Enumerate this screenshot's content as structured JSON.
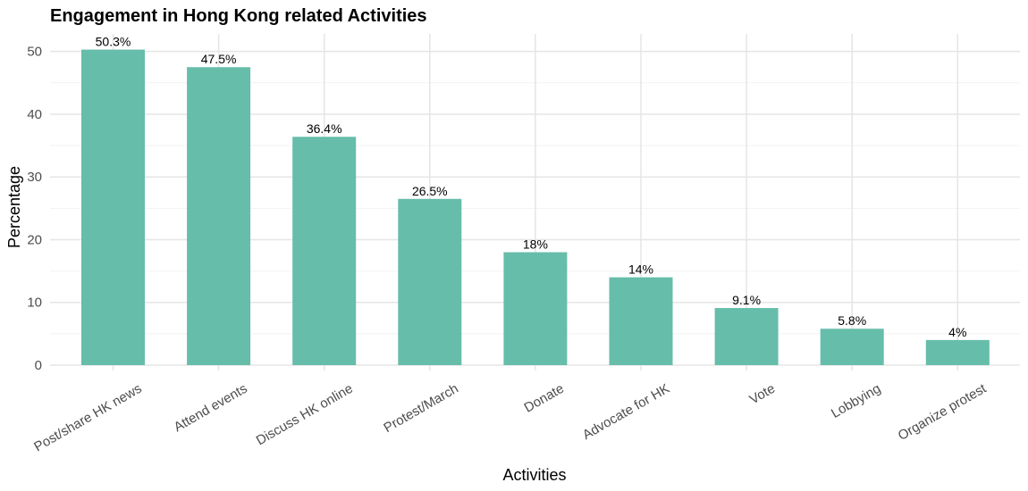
{
  "chart_data": {
    "type": "bar",
    "title": "Engagement in Hong Kong related Activities",
    "xlabel": "Activities",
    "ylabel": "Percentage",
    "categories": [
      "Post/share HK news",
      "Attend events",
      "Discuss HK online",
      "Protest/March",
      "Donate",
      "Advocate for HK",
      "Vote",
      "Lobbying",
      "Organize protest"
    ],
    "values": [
      50.3,
      47.5,
      36.4,
      26.5,
      18,
      14,
      9.1,
      5.8,
      4
    ],
    "data_labels": [
      "50.3%",
      "47.5%",
      "36.4%",
      "26.5%",
      "18%",
      "14%",
      "9.1%",
      "5.8%",
      "4%"
    ],
    "yticks": [
      0,
      10,
      20,
      30,
      40,
      50
    ],
    "ylim": [
      0,
      52.8
    ],
    "grid": true,
    "bar_color": "#66bdaa"
  }
}
